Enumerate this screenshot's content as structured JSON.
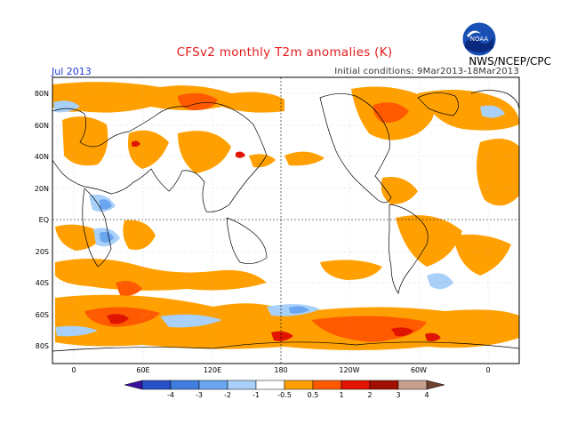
{
  "title": "CFSv2 monthly T2m anomalies (K)",
  "period": "Jul 2013",
  "initial_conditions": "Initial conditions:  9Mar2013-18Mar2013",
  "agency": "NWS/NCEP/CPC",
  "logo_text": "NOAA",
  "lat_labels": [
    "80N",
    "60N",
    "40N",
    "20N",
    "EQ",
    "20S",
    "40S",
    "60S",
    "80S"
  ],
  "lon_labels": [
    "0",
    "60E",
    "120E",
    "180",
    "120W",
    "60W",
    "0"
  ],
  "colorbar": {
    "labels": [
      "-4",
      "-3",
      "-2",
      "-1",
      "-0.5",
      "0.5",
      "1",
      "2",
      "3",
      "4"
    ],
    "colors": [
      "#3a10a0",
      "#2850c8",
      "#3f7ee0",
      "#6aa5f0",
      "#a8d0f8",
      "#ffffff",
      "#ffa000",
      "#ff5a00",
      "#e01400",
      "#a01000",
      "#c8a090",
      "#704030"
    ]
  },
  "colors": {
    "warm_light": "#ffa000",
    "warm_mid": "#ff5a00",
    "warm_dark": "#e01400",
    "cool_light": "#a8d0f8",
    "cool_mid": "#6aa5f0",
    "cool_dark": "#3f7ee0"
  }
}
